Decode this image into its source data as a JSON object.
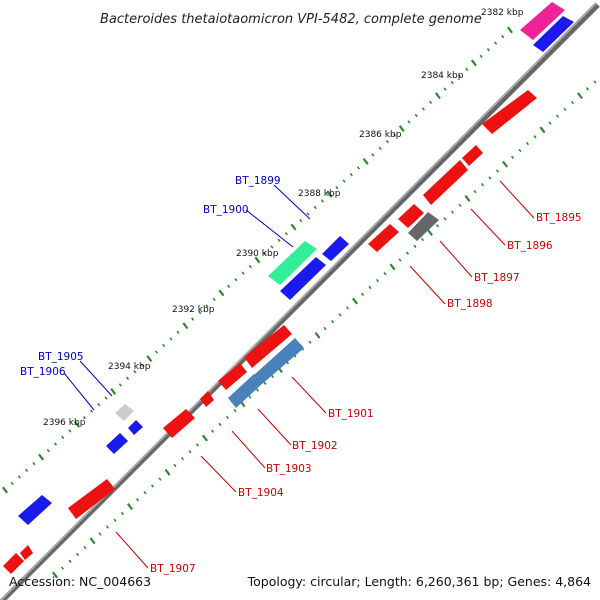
{
  "title": "Bacteroides thetaiotaomicron VPI-5482, complete genome",
  "footer": {
    "accession": "Accession: NC_004663",
    "summary": "Topology: circular; Length: 6,260,361 bp; Genes: 4,864"
  },
  "colors": {
    "forward_label": "#0000cc",
    "reverse_label": "#cc0000",
    "backbone": "#888888",
    "tick": "#2a8a2a"
  },
  "ticks": [
    "2382 kbp",
    "2384 kbp",
    "2386 kbp",
    "2388 kbp",
    "2390 kbp",
    "2392 kbp",
    "2394 kbp",
    "2396 kbp"
  ],
  "genes": {
    "forward": [
      {
        "label": "BT_1899",
        "color": "#1a1aee"
      },
      {
        "label": "BT_1900",
        "color": "#33ee99"
      },
      {
        "label": "BT_1905",
        "color": "#cccccc"
      },
      {
        "label": "BT_1906",
        "color": "#1a1aee"
      }
    ],
    "reverse": [
      {
        "label": "BT_1895",
        "color": "#ee1111"
      },
      {
        "label": "BT_1896",
        "color": "#ee1111"
      },
      {
        "label": "BT_1897",
        "color": "#666666"
      },
      {
        "label": "BT_1898",
        "color": "#ee1111"
      },
      {
        "label": "BT_1901",
        "color": "#4a80bb"
      },
      {
        "label": "BT_1902",
        "color": "#ee1111"
      },
      {
        "label": "BT_1903",
        "color": "#ee1111"
      },
      {
        "label": "BT_1904",
        "color": "#ee1111"
      },
      {
        "label": "BT_1907",
        "color": "#ee1111"
      }
    ]
  }
}
